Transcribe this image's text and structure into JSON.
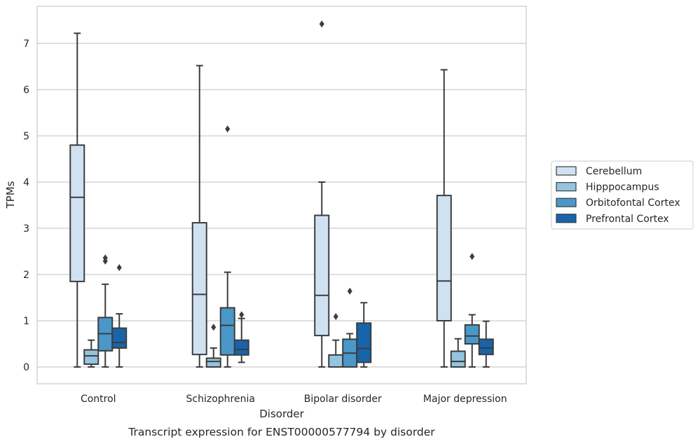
{
  "chart_data": {
    "type": "box",
    "caption": "Transcript expression for ENST00000577794 by disorder",
    "xlabel": "Disorder",
    "ylabel": "TPMs",
    "ylim": [
      -0.35,
      7.78
    ],
    "yticks": [
      0,
      1,
      2,
      3,
      4,
      5,
      6,
      7
    ],
    "grid": "horizontal",
    "legend_position": "right",
    "categories": [
      "Control",
      "Schizophrenia",
      "Bipolar disorder",
      "Major depression"
    ],
    "series": [
      {
        "name": "Cerebellum",
        "color": "#d0e1f2",
        "boxes": [
          {
            "whislo": 0.0,
            "q1": 1.85,
            "med": 3.67,
            "q3": 4.8,
            "whishi": 7.22,
            "fliers": []
          },
          {
            "whislo": 0.0,
            "q1": 0.27,
            "med": 1.57,
            "q3": 3.12,
            "whishi": 6.52,
            "fliers": []
          },
          {
            "whislo": 0.0,
            "q1": 0.68,
            "med": 1.55,
            "q3": 3.28,
            "whishi": 4.0,
            "fliers": [
              7.42
            ]
          },
          {
            "whislo": 0.0,
            "q1": 1.0,
            "med": 1.86,
            "q3": 3.71,
            "whishi": 6.43,
            "fliers": []
          }
        ]
      },
      {
        "name": "Hipppocampus",
        "color": "#94c4df",
        "boxes": [
          {
            "whislo": 0.0,
            "q1": 0.06,
            "med": 0.24,
            "q3": 0.37,
            "whishi": 0.58,
            "fliers": []
          },
          {
            "whislo": 0.0,
            "q1": 0.0,
            "med": 0.12,
            "q3": 0.19,
            "whishi": 0.41,
            "fliers": [
              0.86
            ]
          },
          {
            "whislo": 0.0,
            "q1": 0.0,
            "med": 0.0,
            "q3": 0.26,
            "whishi": 0.58,
            "fliers": [
              1.09
            ]
          },
          {
            "whislo": 0.0,
            "q1": 0.0,
            "med": 0.12,
            "q3": 0.34,
            "whishi": 0.61,
            "fliers": []
          }
        ]
      },
      {
        "name": "Orbitofontal Cortex",
        "color": "#4a98c9",
        "boxes": [
          {
            "whislo": 0.0,
            "q1": 0.35,
            "med": 0.72,
            "q3": 1.07,
            "whishi": 1.79,
            "fliers": [
              2.29,
              2.36
            ]
          },
          {
            "whislo": 0.0,
            "q1": 0.26,
            "med": 0.9,
            "q3": 1.28,
            "whishi": 2.05,
            "fliers": [
              5.15
            ]
          },
          {
            "whislo": 0.0,
            "q1": 0.0,
            "med": 0.3,
            "q3": 0.6,
            "whishi": 0.72,
            "fliers": [
              1.64
            ]
          },
          {
            "whislo": 0.0,
            "q1": 0.5,
            "med": 0.67,
            "q3": 0.91,
            "whishi": 1.13,
            "fliers": [
              2.39
            ]
          }
        ]
      },
      {
        "name": "Prefrontal Cortex",
        "color": "#1764ab",
        "boxes": [
          {
            "whislo": 0.0,
            "q1": 0.41,
            "med": 0.53,
            "q3": 0.84,
            "whishi": 1.15,
            "fliers": [
              2.15
            ]
          },
          {
            "whislo": 0.1,
            "q1": 0.26,
            "med": 0.38,
            "q3": 0.58,
            "whishi": 1.05,
            "fliers": [
              1.13
            ]
          },
          {
            "whislo": 0.0,
            "q1": 0.1,
            "med": 0.4,
            "q3": 0.95,
            "whishi": 1.39,
            "fliers": []
          },
          {
            "whislo": 0.0,
            "q1": 0.27,
            "med": 0.41,
            "q3": 0.6,
            "whishi": 0.99,
            "fliers": []
          }
        ]
      }
    ]
  }
}
